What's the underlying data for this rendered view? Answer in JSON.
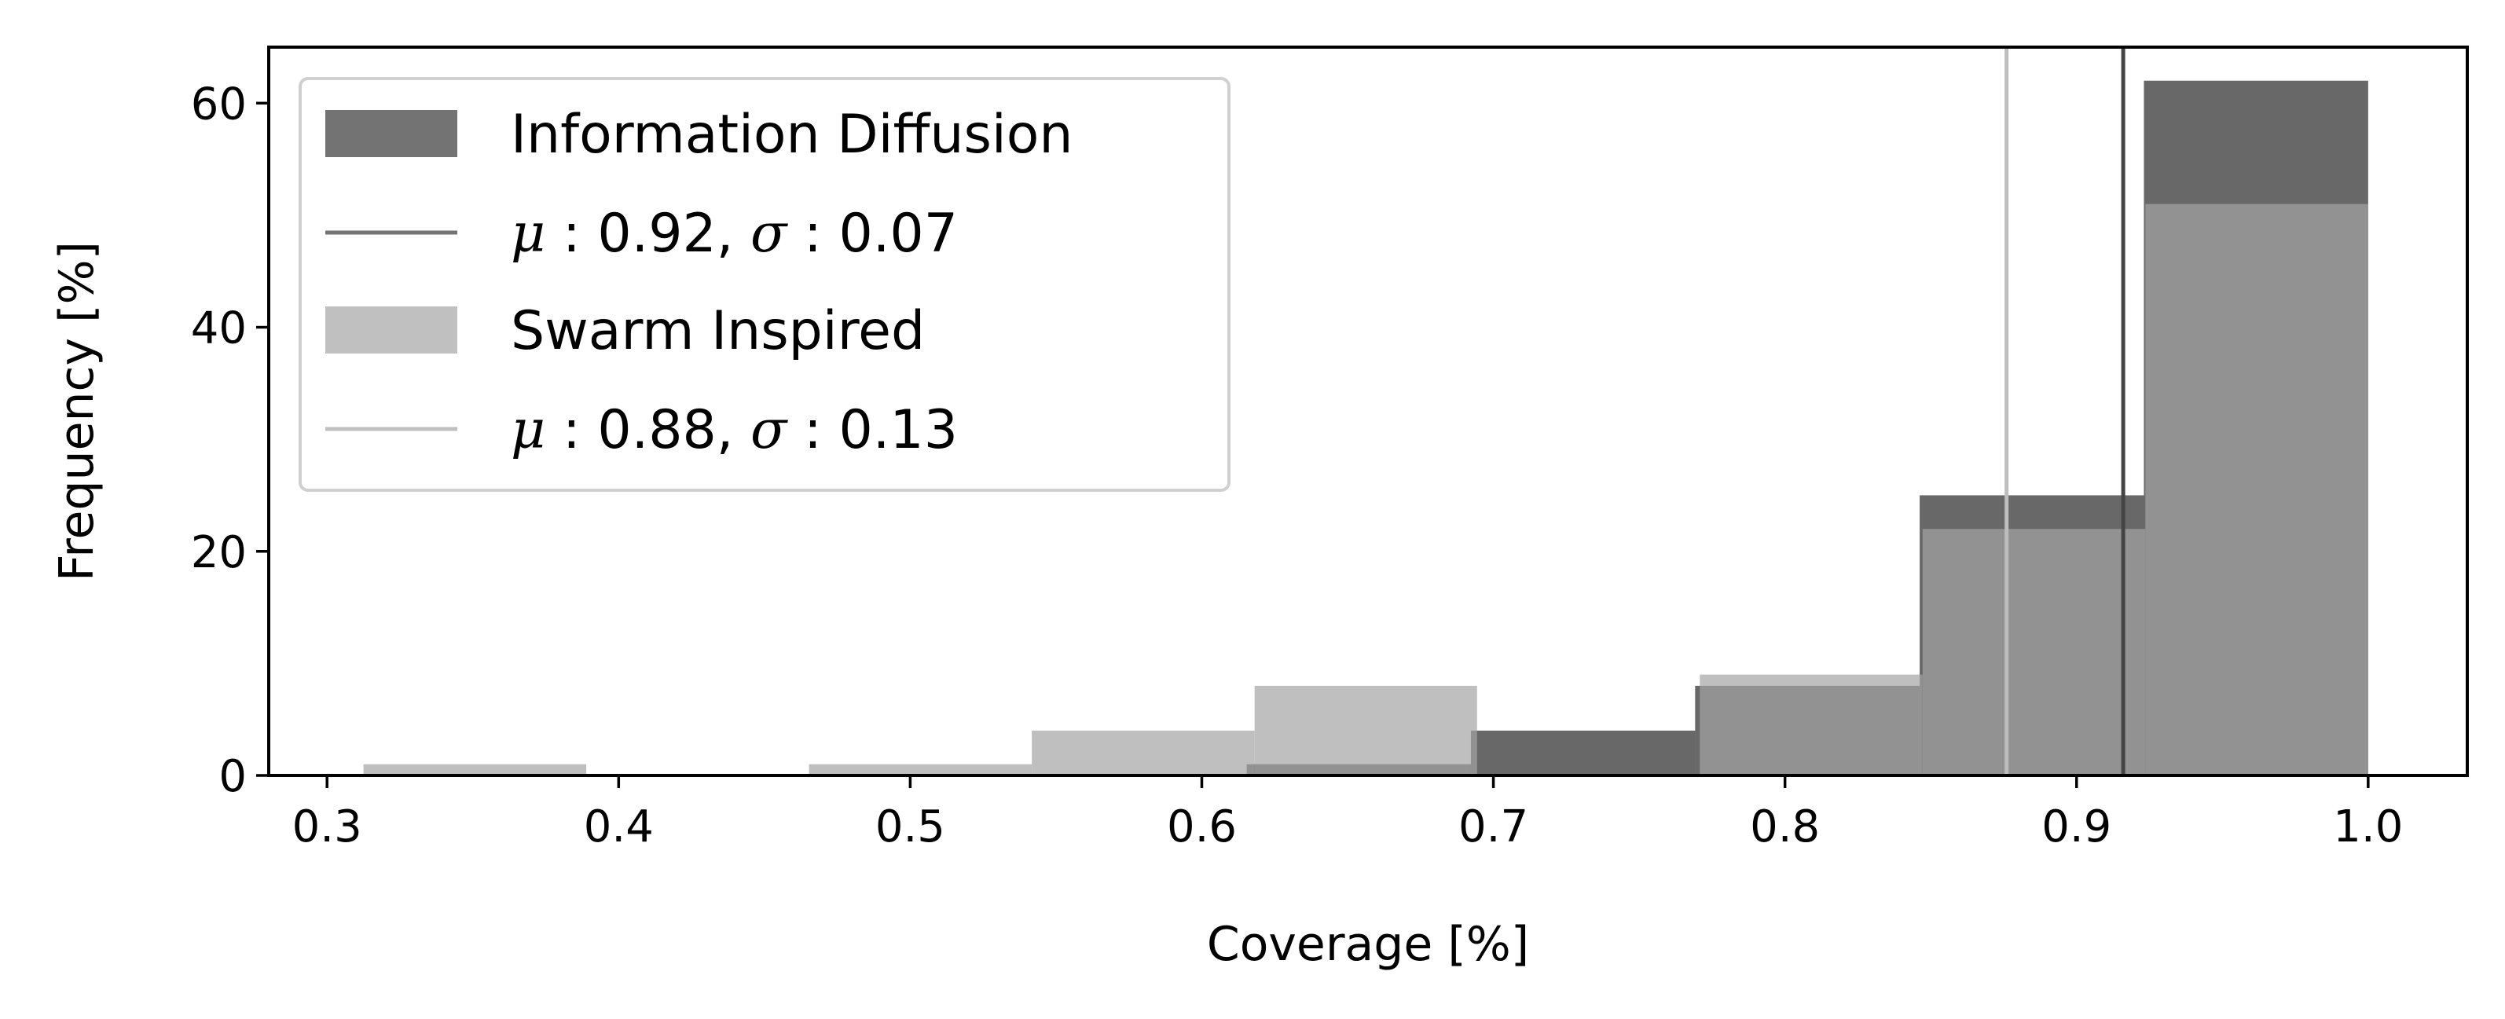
{
  "chart_data": {
    "type": "bar",
    "xlabel": "Coverage [%]",
    "ylabel": "Frequency [%]",
    "xlim": [
      0.28,
      1.034
    ],
    "ylim": [
      0,
      65
    ],
    "xticks": [
      "0.3",
      "0.4",
      "0.5",
      "0.6",
      "0.7",
      "0.8",
      "0.9",
      "1.0"
    ],
    "yticks": [
      "0",
      "20",
      "40",
      "60"
    ],
    "bin_width": 0.0769,
    "series": [
      {
        "name": "Information Diffusion",
        "color": "#7a7a7a",
        "bins": [
          {
            "x0": 0.6154,
            "x1": 0.6923,
            "value": 1
          },
          {
            "x0": 0.6923,
            "x1": 0.7692,
            "value": 4
          },
          {
            "x0": 0.7692,
            "x1": 0.8462,
            "value": 8
          },
          {
            "x0": 0.8462,
            "x1": 0.9231,
            "value": 25
          },
          {
            "x0": 0.9231,
            "x1": 1.0,
            "value": 62
          }
        ],
        "mean_line": {
          "x": 0.916,
          "label": "μ: 0.92,  σ: 0.07",
          "color": "#555555"
        }
      },
      {
        "name": "Swarm Inspired",
        "color": "#c0c0c0",
        "bins": [
          {
            "x0": 0.3125,
            "x1": 0.3889,
            "value": 1
          },
          {
            "x0": 0.4653,
            "x1": 0.5417,
            "value": 1
          },
          {
            "x0": 0.5417,
            "x1": 0.6181,
            "value": 4
          },
          {
            "x0": 0.6181,
            "x1": 0.6944,
            "value": 8
          },
          {
            "x0": 0.6944,
            "x1": 0.7708,
            "value": 0
          },
          {
            "x0": 0.7708,
            "x1": 0.8472,
            "value": 9
          },
          {
            "x0": 0.8472,
            "x1": 0.9236,
            "value": 22
          },
          {
            "x0": 0.9236,
            "x1": 1.0,
            "value": 51
          }
        ],
        "mean_line": {
          "x": 0.876,
          "label": "μ: 0.88,  σ: 0.13",
          "color": "#bdbdbd"
        }
      }
    ],
    "legend": {
      "position": "upper-left",
      "entries": [
        {
          "kind": "patch",
          "color": "#737373",
          "label": "Information Diffusion"
        },
        {
          "kind": "line",
          "color": "#737373",
          "mu": "0.92",
          "sigma": "0.07"
        },
        {
          "kind": "patch",
          "color": "#c0c0c0",
          "label": "Swarm Inspired"
        },
        {
          "kind": "line",
          "color": "#c0c0c0",
          "mu": "0.88",
          "sigma": "0.13"
        }
      ]
    }
  }
}
